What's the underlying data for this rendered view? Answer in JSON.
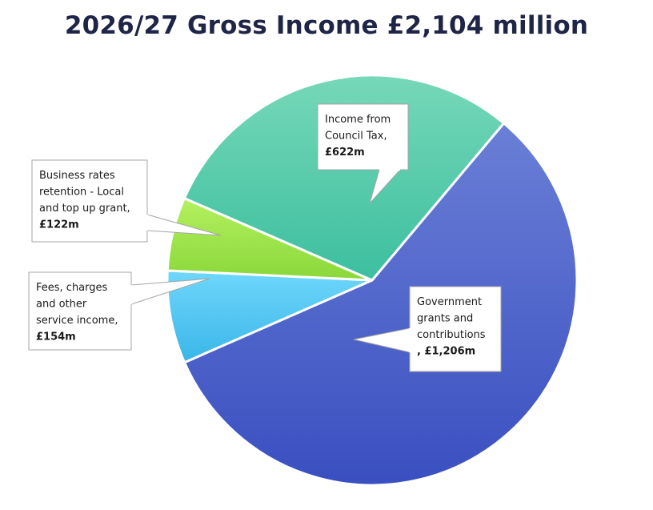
{
  "chart_data": {
    "type": "pie",
    "title": "2026/27 Gross Income £2,104 million",
    "slices": [
      {
        "lines": [
          "Government",
          "grants and",
          "contributions"
        ],
        "value_text": ", £1,206m",
        "value": 1206,
        "color_top": "#6a7fd6",
        "color_bottom": "#3a4fc0"
      },
      {
        "lines": [
          "Fees, charges",
          "and other",
          "service income,"
        ],
        "value_text": "£154m",
        "value": 154,
        "color_top": "#6fd7fb",
        "color_bottom": "#3ab6e8"
      },
      {
        "lines": [
          "Business rates",
          "retention - Local",
          "and top up grant,"
        ],
        "value_text": "£122m",
        "value": 122,
        "color_top": "#b4f060",
        "color_bottom": "#8ad83a"
      },
      {
        "lines": [
          "Income from",
          "Council Tax,"
        ],
        "value_text": "£622m",
        "value": 622,
        "color_top": "#76d8b8",
        "color_bottom": "#3cbf9f"
      }
    ]
  }
}
